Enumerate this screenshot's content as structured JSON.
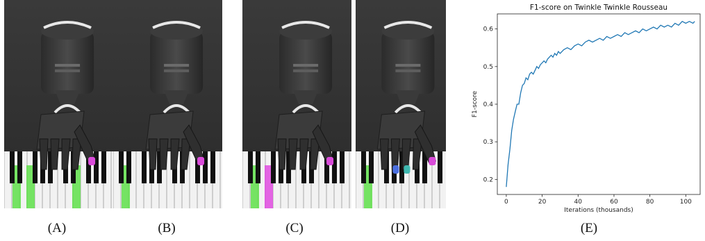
{
  "figure": {
    "captions": [
      "(A)",
      "(B)",
      "(C)",
      "(D)",
      "(E)"
    ],
    "panels": [
      {
        "id": "A",
        "highlights": [
          {
            "color": "#5fe04a"
          },
          {
            "color": "#5fe04a"
          },
          {
            "color": "#5fe04a"
          }
        ],
        "fingertip": "#d94bd9"
      },
      {
        "id": "B",
        "highlights": [
          {
            "color": "#5fe04a"
          }
        ],
        "fingertip": "#d94bd9"
      },
      {
        "id": "C",
        "highlights": [
          {
            "color": "#5fe04a"
          },
          {
            "color": "#e04be0"
          }
        ],
        "fingertip": "#d94bd9"
      },
      {
        "id": "D",
        "highlights": [
          {
            "color": "#5fe04a"
          }
        ],
        "fingertip": "#d94bd9",
        "extra_tips": [
          "#4a6fe0",
          "#3fb8b0"
        ]
      }
    ]
  },
  "chart_data": {
    "type": "line",
    "title": "F1-score on Twinkle Twinkle Rousseau",
    "xlabel": "Iterations (thousands)",
    "ylabel": "F1-score",
    "xlim": [
      -5,
      108
    ],
    "ylim": [
      0.16,
      0.64
    ],
    "xticks": [
      0,
      20,
      40,
      60,
      80,
      100
    ],
    "yticks": [
      0.2,
      0.3,
      0.4,
      0.5,
      0.6
    ],
    "grid": false,
    "color": "#1f77b4",
    "series": [
      {
        "x": [
          0,
          1,
          2,
          3,
          4,
          5,
          6,
          7,
          8,
          9,
          10,
          11,
          12,
          13,
          14,
          15,
          16,
          17,
          18,
          19,
          20,
          21,
          22,
          23,
          24,
          25,
          26,
          27,
          28,
          29,
          30,
          32,
          34,
          36,
          38,
          40,
          42,
          44,
          46,
          48,
          50,
          52,
          54,
          56,
          58,
          60,
          62,
          64,
          66,
          68,
          70,
          72,
          74,
          76,
          78,
          80,
          82,
          84,
          86,
          88,
          90,
          92,
          94,
          96,
          98,
          100,
          102,
          104,
          105
        ],
        "y": [
          0.18,
          0.24,
          0.28,
          0.33,
          0.36,
          0.38,
          0.4,
          0.4,
          0.43,
          0.45,
          0.455,
          0.47,
          0.465,
          0.48,
          0.485,
          0.48,
          0.49,
          0.5,
          0.495,
          0.505,
          0.51,
          0.515,
          0.51,
          0.52,
          0.525,
          0.53,
          0.525,
          0.535,
          0.53,
          0.54,
          0.535,
          0.545,
          0.55,
          0.545,
          0.555,
          0.56,
          0.555,
          0.565,
          0.57,
          0.565,
          0.57,
          0.575,
          0.57,
          0.58,
          0.575,
          0.58,
          0.585,
          0.58,
          0.59,
          0.585,
          0.59,
          0.595,
          0.59,
          0.6,
          0.595,
          0.6,
          0.605,
          0.6,
          0.61,
          0.605,
          0.61,
          0.605,
          0.615,
          0.61,
          0.62,
          0.615,
          0.62,
          0.615,
          0.62
        ]
      }
    ]
  }
}
